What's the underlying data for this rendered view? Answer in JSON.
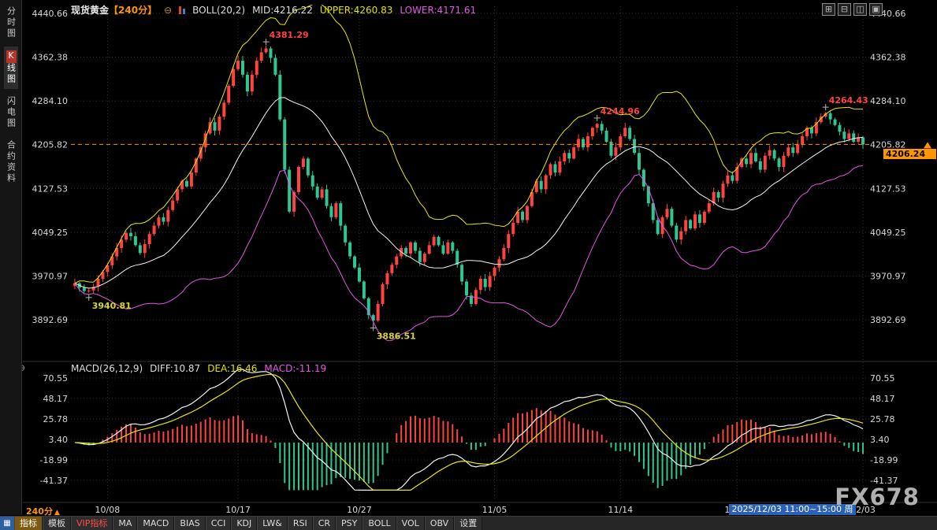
{
  "header": {
    "symbol": "现货黄金",
    "period": "【240分】",
    "boll_label": "BOLL(20,2)",
    "mid": "MID:4216.22",
    "upper": "UPPER:4260.83",
    "lower": "LOWER:4171.61"
  },
  "macd_header": {
    "label": "MACD(26,12,9)",
    "diff": "DIFF:10.87",
    "dea": "DEA:16.46",
    "macd": "MACD:-11.19"
  },
  "icons": {
    "collapse_glyph": "⊖",
    "macd_collapse_glyph": "⊕",
    "period_arrow": "▲",
    "panel_toggle": {
      "name": "panel-toggle-icon",
      "glyph": "▦"
    },
    "window_controls": [
      {
        "name": "layout-quad-icon",
        "glyph": "⊞"
      },
      {
        "name": "layout-split-horizontal-icon",
        "glyph": "⊟"
      },
      {
        "name": "layout-split-vertical-icon",
        "glyph": "◫"
      },
      {
        "name": "layout-single-icon",
        "glyph": "▣"
      }
    ]
  },
  "sidebar": {
    "items": [
      {
        "label": "分时图",
        "name": "time-chart",
        "active": false
      },
      {
        "label": "K线图",
        "name": "kline-chart",
        "active": true
      },
      {
        "label": "闪电图",
        "name": "lightning-chart",
        "active": false
      },
      {
        "label": "合约资料",
        "name": "contract-info",
        "active": false
      }
    ]
  },
  "toolbar": {
    "items": [
      {
        "label": "指标",
        "name": "indicator",
        "style": "active"
      },
      {
        "label": "模板",
        "name": "template",
        "style": "normal"
      },
      {
        "label": "VIP指标",
        "name": "vip-indicator",
        "style": "vip"
      },
      {
        "label": "MA",
        "name": "ma",
        "style": "normal"
      },
      {
        "label": "MACD",
        "name": "macd",
        "style": "normal"
      },
      {
        "label": "BIAS",
        "name": "bias",
        "style": "normal"
      },
      {
        "label": "CCI",
        "name": "cci",
        "style": "normal"
      },
      {
        "label": "KDJ",
        "name": "kdj",
        "style": "normal"
      },
      {
        "label": "LW&",
        "name": "lwr",
        "style": "normal"
      },
      {
        "label": "RSI",
        "name": "rsi",
        "style": "normal"
      },
      {
        "label": "CR",
        "name": "cr",
        "style": "normal"
      },
      {
        "label": "PSY",
        "name": "psy",
        "style": "normal"
      },
      {
        "label": "BOLL",
        "name": "boll",
        "style": "normal"
      },
      {
        "label": "VOL",
        "name": "vol",
        "style": "normal"
      },
      {
        "label": "OBV",
        "name": "obv",
        "style": "normal"
      },
      {
        "label": "设置",
        "name": "settings",
        "style": "normal"
      }
    ]
  },
  "time_axis": {
    "period_label": "240分",
    "highlight": "2025/12/03 11:00~15:00 周三"
  },
  "price_badge": {
    "value": "4206.24"
  },
  "watermark": "FX678",
  "chart_data": {
    "type": "candlestick",
    "title": "现货黄金 240分 K线图 + BOLL(20,2) + MACD(26,12,9)",
    "ylim_main": [
      3892.69,
      4440.66
    ],
    "ylim_macd": [
      -41.37,
      70.55
    ],
    "y_ticks_main": [
      4440.66,
      4362.38,
      4284.1,
      4205.82,
      4127.53,
      4049.25,
      3970.97,
      3892.69
    ],
    "y_ticks_macd": [
      70.55,
      48.17,
      25.78,
      3.4,
      -18.99,
      -41.37
    ],
    "x_ticks": [
      {
        "label": "10/08",
        "index": 7
      },
      {
        "label": "10/17",
        "index": 35
      },
      {
        "label": "10/27",
        "index": 61
      },
      {
        "label": "11/05",
        "index": 90
      },
      {
        "label": "11/14",
        "index": 117
      },
      {
        "label": "11/24",
        "index": 142
      },
      {
        "label": "12/03",
        "index": 169
      }
    ],
    "last_price": 4206.24,
    "boll": {
      "period": 20,
      "mult": 2
    },
    "macd": {
      "fast": 12,
      "slow": 26,
      "signal": 9
    },
    "annotations": [
      {
        "index": 3,
        "price": 3940.81,
        "label": "3940.81",
        "dir": "low",
        "color": "#d6d23a"
      },
      {
        "index": 41,
        "price": 4381.29,
        "label": "4381.29",
        "dir": "high",
        "color": "#ff4242"
      },
      {
        "index": 64,
        "price": 3886.51,
        "label": "3886.51",
        "dir": "low",
        "color": "#d6d23a"
      },
      {
        "index": 112,
        "price": 4244.96,
        "label": "4244.96",
        "dir": "high",
        "color": "#ff4242"
      },
      {
        "index": 161,
        "price": 4264.43,
        "label": "4264.43",
        "dir": "high",
        "color": "#ff4242"
      }
    ],
    "closes": [
      3958,
      3950,
      3944,
      3945,
      3952,
      3966,
      3978,
      3990,
      4006,
      4021,
      4036,
      4048,
      4042,
      4026,
      4012,
      4028,
      4046,
      4061,
      4076,
      4068,
      4089,
      4106,
      4126,
      4141,
      4131,
      4156,
      4181,
      4201,
      4226,
      4246,
      4231,
      4256,
      4281,
      4311,
      4341,
      4356,
      4331,
      4301,
      4331,
      4356,
      4371,
      4378,
      4361,
      4331,
      4251,
      4161,
      4086,
      4121,
      4166,
      4181,
      4151,
      4131,
      4111,
      4126,
      4096,
      4076,
      4101,
      4061,
      4031,
      4006,
      3986,
      3961,
      3931,
      3901,
      3891,
      3921,
      3956,
      3976,
      3991,
      4006,
      4021,
      4011,
      4031,
      4016,
      3996,
      4011,
      4026,
      4041,
      4026,
      4011,
      4031,
      4016,
      3991,
      3961,
      3936,
      3921,
      3946,
      3966,
      3951,
      3971,
      3986,
      4001,
      4021,
      4046,
      4066,
      4086,
      4071,
      4096,
      4121,
      4141,
      4126,
      4151,
      4171,
      4156,
      4176,
      4191,
      4181,
      4201,
      4216,
      4201,
      4221,
      4236,
      4243,
      4231,
      4211,
      4186,
      4201,
      4221,
      4236,
      4216,
      4191,
      4161,
      4131,
      4101,
      4071,
      4046,
      4076,
      4091,
      4061,
      4036,
      4051,
      4071,
      4056,
      4081,
      4066,
      4086,
      4101,
      4121,
      4111,
      4136,
      4151,
      4141,
      4166,
      4181,
      4171,
      4191,
      4176,
      4161,
      4186,
      4196,
      4181,
      4166,
      4186,
      4201,
      4191,
      4206,
      4221,
      4236,
      4226,
      4246,
      4256,
      4262,
      4251,
      4241,
      4229,
      4216,
      4226,
      4211,
      4219,
      4206.24
    ],
    "colors": {
      "up": "#ff4242",
      "down": "#2fc690",
      "boll_upper": "#e8e800",
      "boll_mid": "#f2f2f2",
      "boll_lower": "#e656e6",
      "grid": "#323232",
      "axis_text": "#d6d6d6",
      "price_line": "#ff9500",
      "hist_up": "#ff4242",
      "hist_down": "#2fc690",
      "diff_line": "#f2f2f2",
      "dea_line": "#e8e800"
    }
  }
}
